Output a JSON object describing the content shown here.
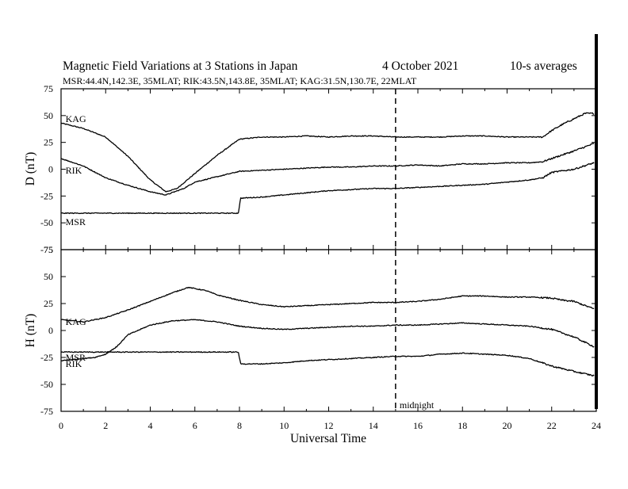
{
  "chart_data": {
    "type": "line",
    "title": "Magnetic Field Variations at 3 Stations in Japan",
    "date": "4   October 2021",
    "averaging": "10-s averages",
    "subtitle": "MSR:44.4N,142.3E, 35MLAT;  RIK:43.5N,143.8E, 35MLAT;  KAG:31.5N,130.7E, 22MLAT",
    "xlabel": "Universal Time",
    "xlim": [
      0,
      24
    ],
    "xticks": [
      "0",
      "2",
      "4",
      "6",
      "8",
      "10",
      "12",
      "14",
      "16",
      "18",
      "20",
      "22",
      "24"
    ],
    "midnight_ut": 15,
    "midnight_label": "midnight",
    "panels": [
      {
        "ylabel": "D (nT)",
        "ylim": [
          -75,
          75
        ],
        "yticks": [
          "75",
          "50",
          "25",
          "0",
          "-25",
          "-50",
          "-75"
        ],
        "series": [
          {
            "name": "KAG",
            "label_x": 0.2,
            "label_y": 47,
            "x": [
              0,
              1,
              2,
              3,
              4,
              4.7,
              5.2,
              6,
              7,
              8,
              9,
              10,
              11,
              12,
              13,
              14,
              15,
              16,
              17,
              18,
              19,
              20,
              21,
              21.6,
              22,
              22.5,
              23,
              23.5,
              23.9
            ],
            "y": [
              43,
              38,
              30,
              12,
              -10,
              -21,
              -18,
              -4,
              13,
              28,
              30,
              30,
              31,
              30,
              31,
              31,
              30,
              30,
              30,
              31,
              31,
              30,
              30,
              30,
              36,
              42,
              47,
              52,
              52
            ]
          },
          {
            "name": "RIK",
            "label_x": 0.2,
            "label_y": -1,
            "x": [
              0,
              1,
              2,
              3,
              4,
              4.7,
              5.5,
              6,
              7,
              8,
              9,
              10,
              11,
              12,
              13,
              14,
              15,
              16,
              17,
              18,
              19,
              20,
              21,
              21.6,
              22,
              23,
              23.9
            ],
            "y": [
              10,
              3,
              -8,
              -15,
              -21,
              -24,
              -18,
              -12,
              -7,
              -2,
              -1,
              0,
              1,
              2,
              2,
              3,
              3,
              4,
              3,
              5,
              5,
              6,
              6,
              7,
              10,
              17,
              24
            ]
          },
          {
            "name": "MSR",
            "label_x": 0.2,
            "label_y": -49,
            "x": [
              0,
              2,
              4,
              6,
              7.95,
              8.05,
              9,
              10,
              11,
              12,
              13,
              14,
              15,
              16,
              17,
              18,
              19,
              20,
              21,
              21.6,
              22,
              23,
              23.9
            ],
            "y": [
              -41,
              -41,
              -41,
              -41,
              -41,
              -27,
              -26,
              -24,
              -22,
              -20,
              -19,
              -18,
              -18,
              -17,
              -16,
              -15,
              -14,
              -12,
              -10,
              -8,
              -3,
              0,
              6
            ]
          }
        ]
      },
      {
        "ylabel": "H (nT)",
        "ylim": [
          -75,
          75
        ],
        "yticks": [
          "75",
          "50",
          "25",
          "0",
          "-25",
          "-50",
          "-75"
        ],
        "series": [
          {
            "name": "KAG",
            "label_x": 0.2,
            "label_y": 8,
            "x": [
              0,
              1,
              2,
              3,
              4,
              5,
              5.7,
              6.5,
              7,
              8,
              9,
              10,
              11,
              12,
              13,
              14,
              15,
              16,
              17,
              18,
              19,
              20,
              21,
              22,
              22.5,
              23,
              23.9
            ],
            "y": [
              10,
              8,
              12,
              19,
              27,
              35,
              40,
              37,
              33,
              28,
              24,
              22,
              23,
              24,
              25,
              26,
              26,
              27,
              29,
              32,
              32,
              31,
              31,
              30,
              28,
              27,
              20
            ]
          },
          {
            "name": "RIK",
            "label_x": 0.2,
            "label_y": -31,
            "x": [
              0,
              1,
              1.5,
              2,
              2.5,
              3,
              4,
              5,
              6,
              7,
              8,
              9,
              10,
              11,
              12,
              13,
              14,
              15,
              16,
              17,
              18,
              19,
              20,
              21,
              22,
              23,
              23.9
            ],
            "y": [
              -28,
              -26,
              -25,
              -22,
              -15,
              -4,
              5,
              9,
              10,
              8,
              4,
              2,
              1,
              2,
              3,
              4,
              4,
              5,
              5,
              6,
              7,
              6,
              5,
              4,
              1,
              -6,
              -15
            ]
          },
          {
            "name": "MSR",
            "label_x": 0.2,
            "label_y": -25,
            "x": [
              0,
              2,
              4,
              6,
              7.95,
              8.05,
              9,
              10,
              11,
              12,
              13,
              14,
              15,
              16,
              17,
              18,
              19,
              20,
              21,
              22,
              23,
              23.9
            ],
            "y": [
              -20,
              -20,
              -20,
              -20,
              -20,
              -31,
              -31,
              -30,
              -28,
              -27,
              -26,
              -25,
              -24,
              -24,
              -22,
              -21,
              -22,
              -23,
              -26,
              -33,
              -38,
              -42
            ]
          }
        ]
      }
    ]
  }
}
